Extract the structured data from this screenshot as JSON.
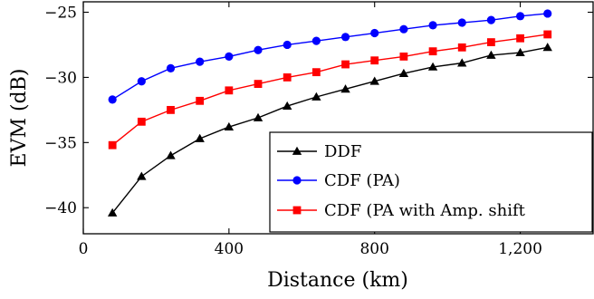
{
  "chart_data": {
    "type": "line",
    "xlabel": "Distance (km)",
    "ylabel": "EVM (dB)",
    "xlim": [
      0,
      1400
    ],
    "ylim": [
      -42,
      -24.2
    ],
    "xticks": [
      0,
      400,
      800,
      1200
    ],
    "xtick_labels": [
      "0",
      "400",
      "800",
      "1,200"
    ],
    "yticks": [
      -40,
      -35,
      -30,
      -25
    ],
    "ytick_labels": [
      "−40",
      "−35",
      "−30",
      "−25"
    ],
    "grid": false,
    "legend_position": "bottom-right",
    "x": [
      80,
      160,
      240,
      320,
      400,
      480,
      560,
      640,
      720,
      800,
      880,
      960,
      1040,
      1120,
      1200,
      1275
    ],
    "series": [
      {
        "name": "DDF",
        "color": "#000000",
        "marker": "triangle",
        "values": [
          -40.4,
          -37.6,
          -36.0,
          -34.7,
          -33.8,
          -33.1,
          -32.2,
          -31.5,
          -30.9,
          -30.3,
          -29.7,
          -29.2,
          -28.9,
          -28.3,
          -28.1,
          -27.7
        ]
      },
      {
        "name": "CDF (PA)",
        "color": "#0000ff",
        "marker": "circle",
        "values": [
          -31.7,
          -30.3,
          -29.3,
          -28.8,
          -28.4,
          -27.9,
          -27.5,
          -27.2,
          -26.9,
          -26.6,
          -26.3,
          -26.0,
          -25.8,
          -25.6,
          -25.3,
          -25.1
        ]
      },
      {
        "name": "CDF (PA with Amp. shift",
        "color": "#ff0000",
        "marker": "square",
        "values": [
          -35.2,
          -33.4,
          -32.5,
          -31.8,
          -31.0,
          -30.5,
          -30.0,
          -29.6,
          -29.0,
          -28.7,
          -28.4,
          -28.0,
          -27.7,
          -27.3,
          -27.0,
          -26.7
        ]
      }
    ]
  }
}
